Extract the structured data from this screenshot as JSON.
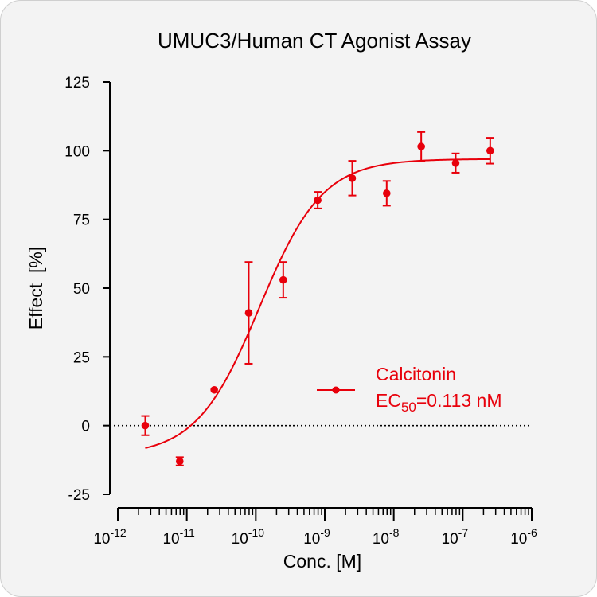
{
  "chart_data": {
    "type": "scatter",
    "title": "UMUC3/Human CT Agonist Assay",
    "xlabel": "Conc. [M]",
    "ylabel": "Effect  [%]",
    "x_scale": "log",
    "xlim": [
      1e-12,
      1e-06
    ],
    "ylim": [
      -25,
      125
    ],
    "x_ticks": [
      {
        "base": "10",
        "exp": "-12",
        "value": 1e-12
      },
      {
        "base": "10",
        "exp": "-11",
        "value": 1e-11
      },
      {
        "base": "10",
        "exp": "-10",
        "value": 1e-10
      },
      {
        "base": "10",
        "exp": "-9",
        "value": 1e-09
      },
      {
        "base": "10",
        "exp": "-8",
        "value": 1e-08
      },
      {
        "base": "10",
        "exp": "-7",
        "value": 1e-07
      },
      {
        "base": "10",
        "exp": "-6",
        "value": 1e-06
      }
    ],
    "y_ticks": [
      {
        "label": "125",
        "value": 125
      },
      {
        "label": "100",
        "value": 100
      },
      {
        "label": "75",
        "value": 75
      },
      {
        "label": "50",
        "value": 50
      },
      {
        "label": "25",
        "value": 25
      },
      {
        "label": "0",
        "value": 0
      },
      {
        "label": "-25",
        "value": -25
      }
    ],
    "reference_line": {
      "y": 0,
      "style": "dotted"
    },
    "series": [
      {
        "name": "Calcitonin",
        "color": "#e8000b",
        "points": [
          {
            "x": 2.5e-12,
            "y": 0,
            "err": 3.5
          },
          {
            "x": 7.9e-12,
            "y": -13,
            "err": 1.5
          },
          {
            "x": 2.5e-11,
            "y": 13,
            "err": 0
          },
          {
            "x": 7.9e-11,
            "y": 41,
            "err": 18.5
          },
          {
            "x": 2.5e-10,
            "y": 53,
            "err": 6.5
          },
          {
            "x": 7.9e-10,
            "y": 82,
            "err": 3
          },
          {
            "x": 2.5e-09,
            "y": 90,
            "err": 6.3
          },
          {
            "x": 7.9e-09,
            "y": 84.5,
            "err": 4.5
          },
          {
            "x": 2.5e-08,
            "y": 101.5,
            "err": 5.3
          },
          {
            "x": 7.9e-08,
            "y": 95.5,
            "err": 3.5
          },
          {
            "x": 2.5e-07,
            "y": 100,
            "err": 4.7
          }
        ],
        "fit": {
          "model": "4PL",
          "bottom": -11,
          "top": 97,
          "ec50": 1.13e-10,
          "hill": 0.95,
          "x_range": [
            2.5e-12,
            2.5e-07
          ]
        }
      }
    ],
    "legend": {
      "position": "right-middle",
      "label": "Calcitonin",
      "ec50_prefix": "EC",
      "ec50_sub": "50",
      "ec50_value": "=0.113 nM"
    },
    "grid": false
  }
}
